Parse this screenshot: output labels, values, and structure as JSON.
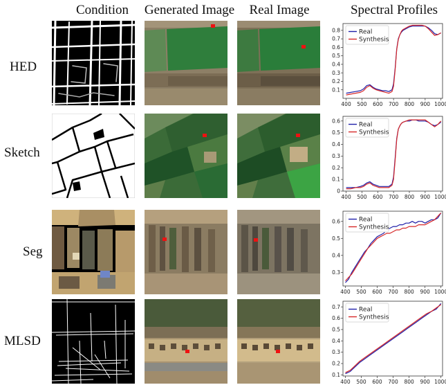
{
  "headers": {
    "condition": "Condition",
    "generated": "Generated Image",
    "real": "Real Image",
    "spectral": "Spectral Profiles"
  },
  "rows": [
    {
      "label": "HED"
    },
    {
      "label": "Sketch"
    },
    {
      "label": "Seg"
    },
    {
      "label": "MLSD"
    }
  ],
  "colors": {
    "real": "#1f1fa8",
    "synthesis": "#d62728",
    "field_green": "#2e7a3a",
    "soil": "#8a7a5e"
  },
  "chart_data": [
    {
      "type": "line",
      "title": "",
      "xlabel": "",
      "ylabel": "",
      "xlim": [
        380,
        1010
      ],
      "ylim": [
        0.0,
        0.88
      ],
      "xticks": [
        400,
        500,
        600,
        700,
        800,
        900,
        1000
      ],
      "yticks": [
        0.1,
        0.2,
        0.3,
        0.4,
        0.5,
        0.6,
        0.7,
        0.8
      ],
      "legend": "top-left",
      "series": [
        {
          "name": "Real",
          "color": "#1f1fa8",
          "x": [
            400,
            430,
            460,
            490,
            510,
            530,
            550,
            570,
            590,
            610,
            630,
            650,
            670,
            690,
            700,
            710,
            720,
            730,
            740,
            750,
            760,
            780,
            800,
            820,
            840,
            860,
            880,
            900,
            920,
            940,
            960,
            980,
            1000
          ],
          "y": [
            0.06,
            0.07,
            0.08,
            0.09,
            0.11,
            0.15,
            0.16,
            0.13,
            0.11,
            0.1,
            0.09,
            0.09,
            0.08,
            0.1,
            0.17,
            0.35,
            0.58,
            0.7,
            0.75,
            0.78,
            0.8,
            0.82,
            0.84,
            0.85,
            0.85,
            0.85,
            0.85,
            0.85,
            0.83,
            0.8,
            0.76,
            0.75,
            0.77
          ]
        },
        {
          "name": "Synthesis",
          "color": "#d62728",
          "x": [
            400,
            430,
            460,
            490,
            510,
            530,
            550,
            570,
            590,
            610,
            630,
            650,
            670,
            690,
            700,
            710,
            720,
            730,
            740,
            750,
            760,
            780,
            800,
            820,
            840,
            860,
            880,
            900,
            920,
            940,
            960,
            980,
            1000
          ],
          "y": [
            0.04,
            0.05,
            0.06,
            0.07,
            0.09,
            0.13,
            0.15,
            0.12,
            0.1,
            0.09,
            0.08,
            0.07,
            0.06,
            0.08,
            0.14,
            0.33,
            0.57,
            0.69,
            0.75,
            0.79,
            0.81,
            0.83,
            0.85,
            0.86,
            0.86,
            0.86,
            0.86,
            0.85,
            0.82,
            0.78,
            0.74,
            0.75,
            0.77
          ]
        }
      ]
    },
    {
      "type": "line",
      "title": "",
      "xlabel": "",
      "ylabel": "",
      "xlim": [
        380,
        1010
      ],
      "ylim": [
        0.0,
        0.64
      ],
      "xticks": [
        400,
        500,
        600,
        700,
        800,
        900,
        1000
      ],
      "yticks": [
        0.0,
        0.1,
        0.2,
        0.3,
        0.4,
        0.5,
        0.6
      ],
      "legend": "top-left",
      "series": [
        {
          "name": "Real",
          "color": "#1f1fa8",
          "x": [
            400,
            430,
            460,
            490,
            510,
            530,
            550,
            570,
            590,
            610,
            630,
            650,
            670,
            690,
            700,
            710,
            720,
            730,
            740,
            750,
            760,
            780,
            800,
            820,
            840,
            860,
            880,
            900,
            920,
            940,
            960,
            980,
            1000
          ],
          "y": [
            0.03,
            0.03,
            0.03,
            0.04,
            0.05,
            0.07,
            0.08,
            0.06,
            0.05,
            0.04,
            0.04,
            0.04,
            0.04,
            0.06,
            0.12,
            0.28,
            0.45,
            0.53,
            0.56,
            0.58,
            0.59,
            0.6,
            0.6,
            0.61,
            0.61,
            0.6,
            0.6,
            0.6,
            0.59,
            0.57,
            0.56,
            0.57,
            0.59
          ]
        },
        {
          "name": "Synthesis",
          "color": "#d62728",
          "x": [
            400,
            430,
            460,
            490,
            510,
            530,
            550,
            570,
            590,
            610,
            630,
            650,
            670,
            690,
            700,
            710,
            720,
            730,
            740,
            750,
            760,
            780,
            800,
            820,
            840,
            860,
            880,
            900,
            920,
            940,
            960,
            980,
            1000
          ],
          "y": [
            0.02,
            0.02,
            0.03,
            0.03,
            0.04,
            0.06,
            0.07,
            0.05,
            0.04,
            0.03,
            0.03,
            0.03,
            0.03,
            0.05,
            0.1,
            0.26,
            0.44,
            0.53,
            0.56,
            0.58,
            0.59,
            0.6,
            0.61,
            0.61,
            0.61,
            0.61,
            0.61,
            0.61,
            0.59,
            0.57,
            0.55,
            0.57,
            0.6
          ]
        }
      ]
    },
    {
      "type": "line",
      "title": "",
      "xlabel": "",
      "ylabel": "",
      "xlim": [
        385,
        1010
      ],
      "ylim": [
        0.22,
        0.66
      ],
      "xticks": [
        400,
        500,
        600,
        700,
        800,
        900,
        1000
      ],
      "yticks": [
        0.3,
        0.4,
        0.5,
        0.6
      ],
      "legend": "top-left",
      "series": [
        {
          "name": "Real",
          "color": "#1f1fa8",
          "x": [
            400,
            420,
            440,
            460,
            480,
            500,
            520,
            540,
            560,
            580,
            600,
            620,
            640,
            660,
            680,
            700,
            720,
            740,
            760,
            780,
            800,
            820,
            840,
            860,
            880,
            900,
            920,
            940,
            960,
            980,
            1000
          ],
          "y": [
            0.24,
            0.26,
            0.3,
            0.33,
            0.36,
            0.39,
            0.42,
            0.44,
            0.47,
            0.49,
            0.51,
            0.52,
            0.53,
            0.55,
            0.56,
            0.57,
            0.57,
            0.58,
            0.58,
            0.59,
            0.59,
            0.6,
            0.59,
            0.6,
            0.6,
            0.59,
            0.6,
            0.61,
            0.61,
            0.62,
            0.65
          ]
        },
        {
          "name": "Synthesis",
          "color": "#d62728",
          "x": [
            400,
            420,
            440,
            460,
            480,
            500,
            520,
            540,
            560,
            580,
            600,
            620,
            640,
            660,
            680,
            700,
            720,
            740,
            760,
            780,
            800,
            820,
            840,
            860,
            880,
            900,
            920,
            940,
            960,
            980,
            1000
          ],
          "y": [
            0.25,
            0.27,
            0.29,
            0.32,
            0.35,
            0.38,
            0.41,
            0.44,
            0.46,
            0.48,
            0.5,
            0.51,
            0.52,
            0.53,
            0.53,
            0.54,
            0.55,
            0.55,
            0.56,
            0.56,
            0.57,
            0.57,
            0.57,
            0.58,
            0.58,
            0.58,
            0.59,
            0.6,
            0.61,
            0.63,
            0.65
          ]
        }
      ]
    },
    {
      "type": "line",
      "title": "",
      "xlabel": "",
      "ylabel": "",
      "xlim": [
        385,
        1010
      ],
      "ylim": [
        0.09,
        0.75
      ],
      "xticks": [
        400,
        500,
        600,
        700,
        800,
        900,
        1000
      ],
      "yticks": [
        0.1,
        0.2,
        0.3,
        0.4,
        0.5,
        0.6,
        0.7
      ],
      "legend": "top-left",
      "series": [
        {
          "name": "Real",
          "color": "#1f1fa8",
          "x": [
            400,
            430,
            460,
            490,
            520,
            550,
            580,
            610,
            640,
            670,
            700,
            730,
            760,
            790,
            820,
            850,
            880,
            910,
            940,
            970,
            1000
          ],
          "y": [
            0.11,
            0.13,
            0.17,
            0.21,
            0.24,
            0.27,
            0.3,
            0.33,
            0.36,
            0.39,
            0.42,
            0.45,
            0.48,
            0.51,
            0.54,
            0.57,
            0.6,
            0.63,
            0.66,
            0.68,
            0.73
          ]
        },
        {
          "name": "Synthesis",
          "color": "#d62728",
          "x": [
            400,
            430,
            460,
            490,
            520,
            550,
            580,
            610,
            640,
            670,
            700,
            730,
            760,
            790,
            820,
            850,
            880,
            910,
            940,
            970,
            1000
          ],
          "y": [
            0.12,
            0.14,
            0.18,
            0.22,
            0.25,
            0.28,
            0.31,
            0.34,
            0.37,
            0.4,
            0.43,
            0.46,
            0.49,
            0.52,
            0.55,
            0.58,
            0.61,
            0.64,
            0.66,
            0.69,
            0.72
          ]
        }
      ]
    }
  ]
}
